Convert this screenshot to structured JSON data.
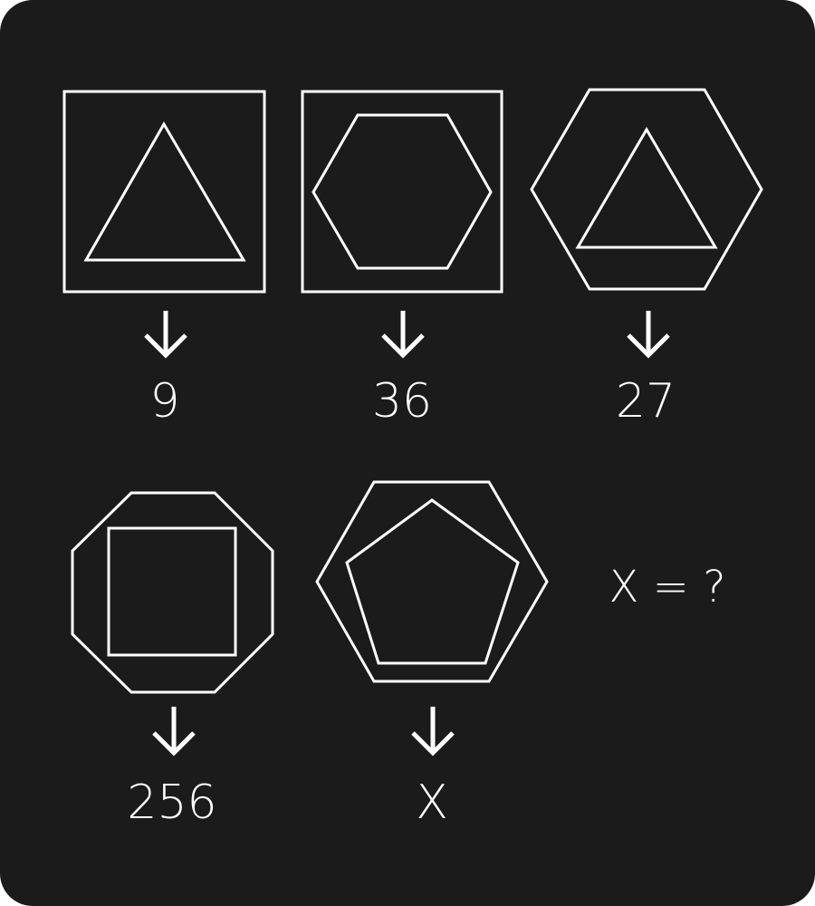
{
  "figures": [
    {
      "outer": "square",
      "inner": "triangle",
      "value": "9"
    },
    {
      "outer": "square",
      "inner": "hexagon",
      "value": "36"
    },
    {
      "outer": "hexagon",
      "inner": "triangle",
      "value": "27"
    },
    {
      "outer": "octagon",
      "inner": "square",
      "value": "256"
    },
    {
      "outer": "hexagon",
      "inner": "pentagon",
      "value": "X"
    }
  ],
  "question": "X = ?",
  "colors": {
    "background": "#1b1b1b",
    "foreground": "#ffffff"
  }
}
